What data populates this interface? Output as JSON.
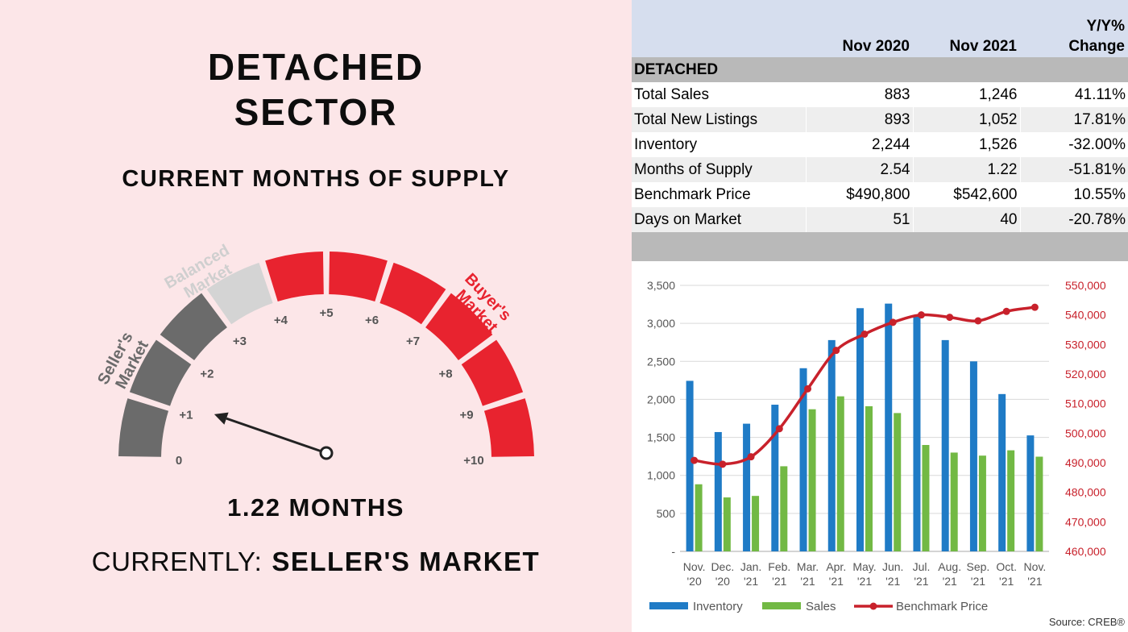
{
  "left": {
    "title_line1": "DETACHED",
    "title_line2": "SECTOR",
    "subtitle": "CURRENT MONTHS OF SUPPLY",
    "gauge": {
      "value": 1.22,
      "min": 0,
      "max": 10,
      "tick_labels": [
        "0",
        "+1",
        "+2",
        "+3",
        "+4",
        "+5",
        "+6",
        "+7",
        "+8",
        "+9",
        "+10"
      ],
      "zone_sellers": "Seller's Market",
      "zone_sellers_line1": "Seller's",
      "zone_sellers_line2": "Market",
      "zone_balanced_line1": "Balanced",
      "zone_balanced_line2": "Market",
      "zone_buyers_line1": "Buyer's",
      "zone_buyers_line2": "Market",
      "colors": {
        "sellers": "#6b6b6b",
        "balanced": "#d4d4d4",
        "buyers": "#e8232f"
      }
    },
    "value_text": "1.22 MONTHS",
    "current_label": "CURRENTLY:",
    "current_value": "SELLER'S MARKET"
  },
  "table": {
    "headers": [
      "",
      "Nov 2020",
      "Nov 2021",
      "Y/Y%",
      "Change"
    ],
    "section": "DETACHED",
    "rows": [
      [
        "Total Sales",
        "883",
        "1,246",
        "41.11%"
      ],
      [
        "Total New Listings",
        "893",
        "1,052",
        "17.81%"
      ],
      [
        "Inventory",
        "2,244",
        "1,526",
        "-32.00%"
      ],
      [
        "Months of Supply",
        "2.54",
        "1.22",
        "-51.81%"
      ],
      [
        "Benchmark Price",
        "$490,800",
        "$542,600",
        "10.55%"
      ],
      [
        "Days on Market",
        "51",
        "40",
        "-20.78%"
      ]
    ]
  },
  "chart_data": {
    "type": "bar",
    "categories": [
      "Nov.\n'20",
      "Dec.\n'20",
      "Jan.\n'21",
      "Feb.\n'21",
      "Mar.\n'21",
      "Apr.\n'21",
      "May.\n'21",
      "Jun.\n'21",
      "Jul.\n'21",
      "Aug.\n'21",
      "Sep.\n'21",
      "Oct.\n'21",
      "Nov.\n'21"
    ],
    "series": [
      {
        "name": "Inventory",
        "type": "bar",
        "axis": "left",
        "color": "#1f7bc6",
        "values": [
          2244,
          1570,
          1680,
          1930,
          2410,
          2780,
          3200,
          3260,
          3100,
          2780,
          2500,
          2070,
          1526
        ]
      },
      {
        "name": "Sales",
        "type": "bar",
        "axis": "left",
        "color": "#72b944",
        "values": [
          883,
          710,
          730,
          1120,
          1870,
          2040,
          1910,
          1820,
          1400,
          1300,
          1260,
          1330,
          1246
        ]
      },
      {
        "name": "Benchmark Price",
        "type": "line",
        "axis": "right",
        "color": "#c8212b",
        "values": [
          490800,
          489500,
          492000,
          501500,
          515000,
          528000,
          533500,
          537500,
          540000,
          539200,
          538000,
          541200,
          542600
        ]
      }
    ],
    "y_left": {
      "min": 0,
      "max": 3500,
      "ticks": [
        "-",
        "500",
        "1,000",
        "1,500",
        "2,000",
        "2,500",
        "3,000",
        "3,500"
      ],
      "tick_values": [
        0,
        500,
        1000,
        1500,
        2000,
        2500,
        3000,
        3500
      ]
    },
    "y_right": {
      "min": 460000,
      "max": 550000,
      "ticks": [
        "460,000",
        "470,000",
        "480,000",
        "490,000",
        "500,000",
        "510,000",
        "520,000",
        "530,000",
        "540,000",
        "550,000"
      ],
      "tick_values": [
        460000,
        470000,
        480000,
        490000,
        500000,
        510000,
        520000,
        530000,
        540000,
        550000
      ]
    },
    "legend": [
      "Inventory",
      "Sales",
      "Benchmark Price"
    ],
    "legend_position": "bottom",
    "grid": true,
    "source": "Source: CREB®"
  }
}
